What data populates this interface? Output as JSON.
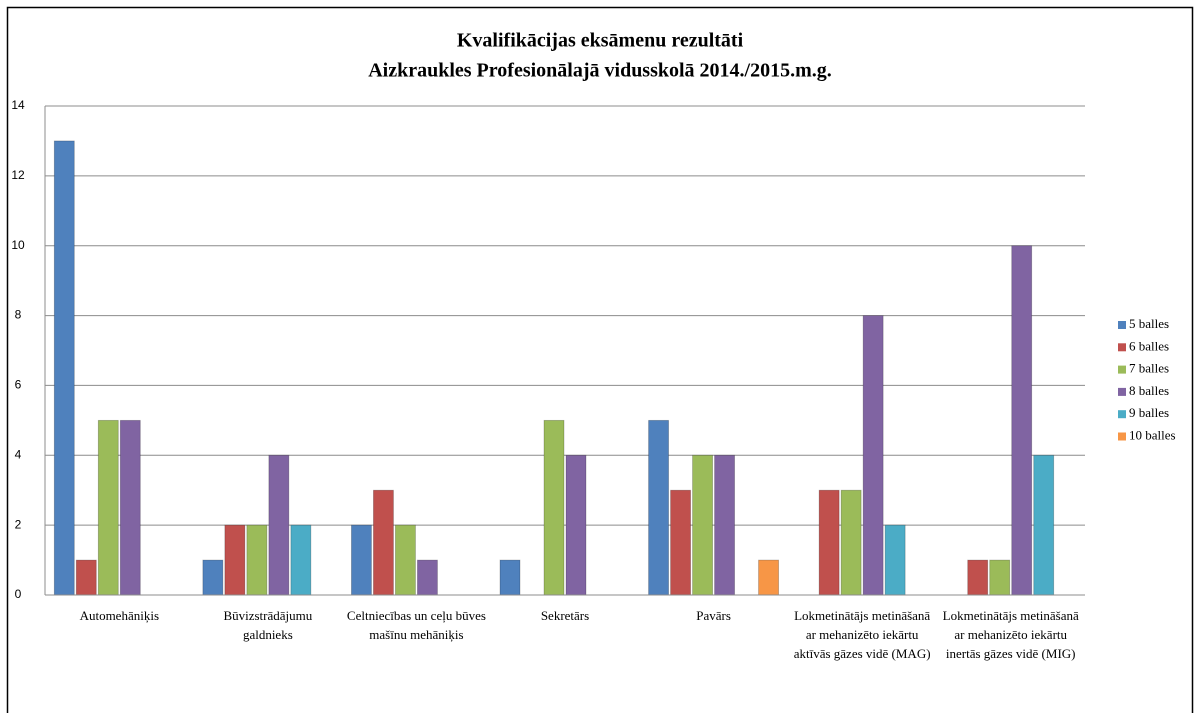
{
  "chart_data": {
    "type": "bar",
    "title": "Kvalifikācijas eksāmenu rezultāti",
    "subtitle": "Aizkraukles Profesionālajā vidusskolā 2014./2015.m.g.",
    "categories": [
      "Automehāniķis",
      "Būvizstrādājumu galdnieks",
      "Celtniecības un ceļu būves mašīnu mehāniķis",
      "Sekretārs",
      "Pavārs",
      "Lokmetinātājs metināšanā ar mehanizēto iekārtu aktīvās gāzes vidē (MAG)",
      "Lokmetinātājs metināšanā ar mehanizēto iekārtu inertās gāzes vidē (MIG)"
    ],
    "series": [
      {
        "name": "5 balles",
        "color": "#4f81bd",
        "values": [
          13,
          1,
          2,
          1,
          5,
          0,
          0
        ]
      },
      {
        "name": "6 balles",
        "color": "#c0504d",
        "values": [
          1,
          2,
          3,
          0,
          3,
          3,
          1
        ]
      },
      {
        "name": "7 balles",
        "color": "#9bbb59",
        "values": [
          5,
          2,
          2,
          5,
          4,
          3,
          1
        ]
      },
      {
        "name": "8 balles",
        "color": "#8064a2",
        "values": [
          5,
          4,
          1,
          4,
          4,
          8,
          10
        ]
      },
      {
        "name": "9 balles",
        "color": "#4bacc6",
        "values": [
          0,
          2,
          0,
          0,
          0,
          2,
          4
        ]
      },
      {
        "name": "10 balles",
        "color": "#f79646",
        "values": [
          0,
          0,
          0,
          0,
          1,
          0,
          0
        ]
      }
    ],
    "ylim": [
      0,
      14
    ],
    "yticks": [
      0,
      2,
      4,
      6,
      8,
      10,
      12,
      14
    ],
    "grid": true,
    "legend": "right"
  }
}
